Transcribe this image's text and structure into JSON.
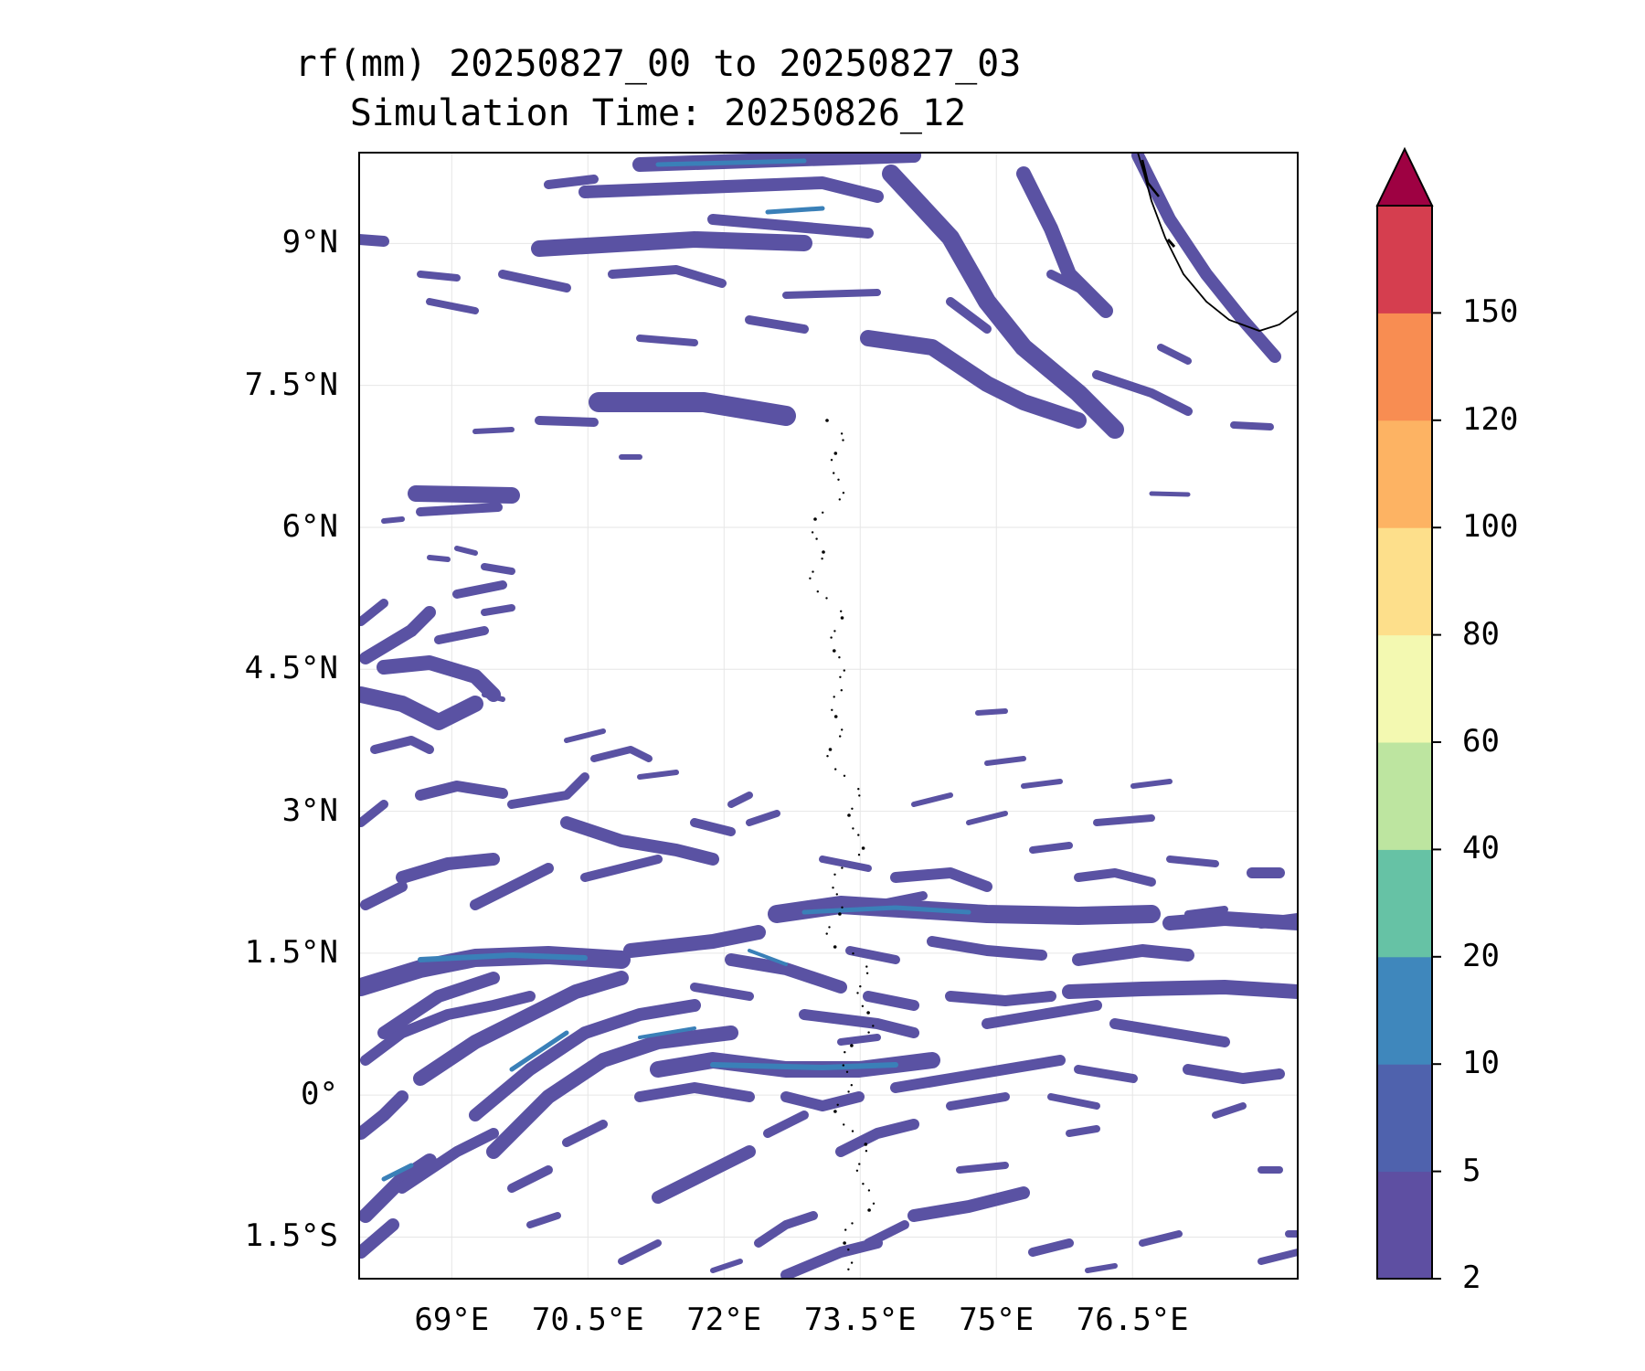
{
  "title_line1": "rf(mm) 20250827_00 to 20250827_03",
  "title_line2": "Simulation Time: 20250826_12",
  "map": {
    "lon_range": [
      67.98,
      78.32
    ],
    "lat_range": [
      -1.94,
      9.96
    ],
    "lat_ticks": [
      {
        "value": 9,
        "label": "9°N"
      },
      {
        "value": 7.5,
        "label": "7.5°N"
      },
      {
        "value": 6,
        "label": "6°N"
      },
      {
        "value": 4.5,
        "label": "4.5°N"
      },
      {
        "value": 3,
        "label": "3°N"
      },
      {
        "value": 1.5,
        "label": "1.5°N"
      },
      {
        "value": 0,
        "label": "0°"
      },
      {
        "value": -1.5,
        "label": "1.5°S"
      }
    ],
    "lon_ticks": [
      {
        "value": 69,
        "label": "69°E"
      },
      {
        "value": 70.5,
        "label": "70.5°E"
      },
      {
        "value": 72,
        "label": "72°E"
      },
      {
        "value": 73.5,
        "label": "73.5°E"
      },
      {
        "value": 75,
        "label": "75°E"
      },
      {
        "value": 76.5,
        "label": "76.5°E"
      }
    ],
    "grid": true,
    "coastline": "India west coast (top-right), Maldives atolls (dotted chain near 73.3°E)"
  },
  "colorbar": {
    "levels": [
      "2",
      "5",
      "10",
      "20",
      "40",
      "60",
      "80",
      "100",
      "120",
      "150"
    ],
    "colors": [
      "#5e4fa2",
      "#4f62ad",
      "#3f87bc",
      "#66c2a5",
      "#bde5a0",
      "#f3f9b1",
      "#fddf8b",
      "#fdb363",
      "#f88d52",
      "#d53e4f"
    ],
    "extend_color": "#9e0142",
    "extend": "max"
  },
  "colors": {
    "rain_light": "#5a52a3",
    "rain_heavier": "#3a80b8",
    "coast": "#000000"
  }
}
